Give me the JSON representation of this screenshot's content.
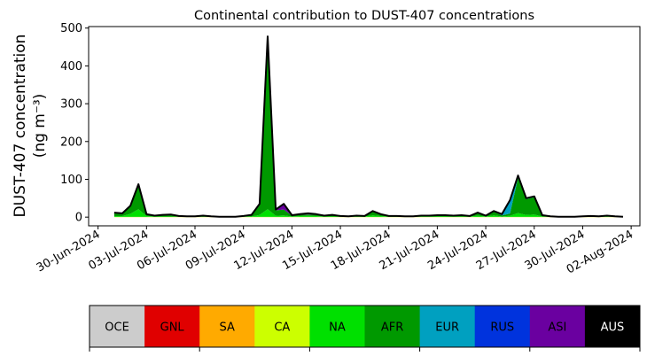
{
  "chart_data": {
    "type": "area",
    "stacked": true,
    "title": "Continental contribution to DUST-407 concentrations",
    "ylabel_line1": "DUST-407 concentration",
    "ylabel_line2": "(ng m⁻³)",
    "xlabel": "",
    "ylim": [
      -23,
      504
    ],
    "xlim": [
      "2024-06-29 10:00",
      "2024-08-02 13:00"
    ],
    "yticks": [
      0,
      100,
      200,
      300,
      400,
      500
    ],
    "xticks": [
      "30-Jun-2024",
      "03-Jul-2024",
      "06-Jul-2024",
      "09-Jul-2024",
      "12-Jul-2024",
      "15-Jul-2024",
      "18-Jul-2024",
      "21-Jul-2024",
      "24-Jul-2024",
      "27-Jul-2024",
      "30-Jul-2024",
      "02-Aug-2024"
    ],
    "grid": false,
    "legend": "colorbar-bottom",
    "total_line_color": "#000000",
    "x": [
      "2024-07-01 00:00",
      "2024-07-01 12:00",
      "2024-07-02 00:00",
      "2024-07-02 12:00",
      "2024-07-03 00:00",
      "2024-07-03 12:00",
      "2024-07-04 00:00",
      "2024-07-04 12:00",
      "2024-07-05 00:00",
      "2024-07-05 12:00",
      "2024-07-06 00:00",
      "2024-07-06 12:00",
      "2024-07-07 00:00",
      "2024-07-07 12:00",
      "2024-07-08 00:00",
      "2024-07-08 12:00",
      "2024-07-09 00:00",
      "2024-07-09 12:00",
      "2024-07-10 00:00",
      "2024-07-10 12:00",
      "2024-07-11 00:00",
      "2024-07-11 12:00",
      "2024-07-12 00:00",
      "2024-07-12 12:00",
      "2024-07-13 00:00",
      "2024-07-13 12:00",
      "2024-07-14 00:00",
      "2024-07-14 12:00",
      "2024-07-15 00:00",
      "2024-07-15 12:00",
      "2024-07-16 00:00",
      "2024-07-16 12:00",
      "2024-07-17 00:00",
      "2024-07-17 12:00",
      "2024-07-18 00:00",
      "2024-07-18 12:00",
      "2024-07-19 00:00",
      "2024-07-19 12:00",
      "2024-07-20 00:00",
      "2024-07-20 12:00",
      "2024-07-21 00:00",
      "2024-07-21 12:00",
      "2024-07-22 00:00",
      "2024-07-22 12:00",
      "2024-07-23 00:00",
      "2024-07-23 12:00",
      "2024-07-24 00:00",
      "2024-07-24 12:00",
      "2024-07-25 00:00",
      "2024-07-25 12:00",
      "2024-07-26 00:00",
      "2024-07-26 12:00",
      "2024-07-27 00:00",
      "2024-07-27 12:00",
      "2024-07-28 00:00",
      "2024-07-28 12:00",
      "2024-07-29 00:00",
      "2024-07-29 12:00",
      "2024-07-30 00:00",
      "2024-07-30 12:00",
      "2024-07-31 00:00",
      "2024-07-31 12:00",
      "2024-08-01 00:00",
      "2024-08-01 12:00"
    ],
    "series": [
      {
        "name": "OCE",
        "color": "#cccccc",
        "values": [
          0,
          0,
          0,
          0,
          0,
          0,
          0,
          0,
          0,
          0,
          0,
          0,
          0,
          0,
          0,
          0,
          0,
          0,
          0,
          0,
          0,
          0,
          0,
          0,
          0,
          0,
          0,
          0,
          0,
          0,
          0,
          0,
          0,
          0,
          0,
          0,
          0,
          0,
          0,
          0,
          0,
          0,
          0,
          0,
          0,
          0,
          0,
          0,
          0,
          0,
          0,
          0,
          0,
          0,
          0,
          0,
          0,
          0,
          0,
          0,
          0,
          0,
          0,
          0
        ]
      },
      {
        "name": "GNL",
        "color": "#e00000",
        "values": [
          0,
          0,
          0,
          0,
          0,
          0,
          0,
          0,
          0,
          0,
          0,
          0,
          0,
          0,
          0,
          0,
          0,
          0,
          0,
          0,
          0,
          0,
          0,
          0,
          0,
          0,
          0,
          0,
          0,
          0,
          0,
          0,
          0,
          0,
          0,
          0,
          0,
          0,
          0,
          0,
          0,
          0,
          0,
          0,
          0,
          0,
          0,
          0,
          0,
          0,
          0,
          0,
          0,
          0,
          0,
          0,
          0,
          0,
          0,
          0,
          0,
          0,
          0,
          0
        ]
      },
      {
        "name": "SA",
        "color": "#ffaa00",
        "values": [
          0.2,
          0.2,
          0.2,
          0.2,
          0.2,
          0.2,
          0.2,
          0.2,
          0.2,
          0.2,
          0.2,
          0.2,
          0.2,
          0.2,
          0.2,
          0.2,
          0.2,
          0.2,
          0.2,
          0.2,
          0.2,
          0.2,
          0.2,
          0.2,
          0.2,
          0.2,
          0.2,
          0.2,
          0.2,
          0.2,
          0.2,
          0.2,
          0.2,
          0.2,
          0.2,
          0.2,
          0.2,
          0.2,
          0.2,
          0.2,
          0.2,
          0.2,
          0.2,
          0.2,
          0.2,
          0.2,
          0.2,
          0.2,
          0.2,
          0.2,
          0.2,
          0.2,
          0.2,
          0.2,
          0.2,
          0.2,
          0.2,
          0.2,
          0.2,
          0.2,
          0.2,
          0.2,
          0.2,
          0.2
        ]
      },
      {
        "name": "CA",
        "color": "#ccff00",
        "values": [
          0.5,
          0.5,
          0.5,
          0.5,
          0.5,
          0.5,
          0.5,
          0.5,
          0.5,
          0.5,
          0.5,
          0.5,
          0.5,
          0.5,
          0.5,
          0.5,
          0.5,
          0.5,
          0.5,
          0.5,
          0.5,
          0.5,
          0.5,
          0.5,
          0.5,
          0.5,
          0.5,
          0.5,
          0.5,
          0.5,
          0.5,
          0.5,
          0.5,
          0.5,
          0.5,
          0.5,
          0.5,
          0.5,
          0.5,
          0.5,
          0.5,
          0.5,
          0.5,
          0.5,
          0.5,
          0.5,
          0.5,
          0.5,
          0.5,
          0.5,
          0.5,
          0.5,
          0.5,
          0.5,
          0.5,
          0.5,
          0.5,
          0.5,
          0.5,
          0.5,
          0.5,
          0.5,
          0.5,
          0.5
        ]
      },
      {
        "name": "NA",
        "color": "#00e000",
        "values": [
          2,
          2,
          8,
          20,
          2,
          1,
          1,
          1,
          0.5,
          0.5,
          0.5,
          1,
          0.5,
          0.1,
          0.1,
          0.1,
          0.5,
          1,
          5,
          20,
          3,
          4,
          1,
          2,
          3,
          2,
          1,
          1,
          1,
          0.5,
          1,
          1,
          4,
          2,
          1,
          1,
          0.5,
          0.5,
          1,
          1,
          1,
          1,
          1,
          1,
          1,
          3,
          1,
          4,
          1,
          3,
          10,
          5,
          6,
          1,
          0.5,
          0.1,
          0.1,
          0.1,
          0.5,
          0.5,
          0.5,
          1,
          0.5,
          0.1
        ]
      },
      {
        "name": "AFR",
        "color": "#009900",
        "values": [
          8.3,
          6.3,
          20.8,
          65.8,
          4.8,
          1.8,
          2.3,
          3.3,
          1.3,
          0.3,
          0.3,
          1.8,
          0.3,
          0,
          0,
          0,
          1.3,
          3.3,
          28.3,
          449.3,
          14.3,
          15.3,
          2.3,
          3.3,
          3.3,
          3.3,
          1.3,
          3.3,
          0.8,
          0.3,
          1.8,
          0.8,
          10.3,
          4.3,
          0.8,
          0.8,
          0.3,
          0.3,
          1.3,
          1.3,
          1.8,
          1.8,
          1.3,
          1.8,
          0.8,
          7.3,
          1.3,
          10.3,
          2.8,
          5.8,
          93.3,
          41.8,
          45.8,
          1.8,
          0.3,
          0,
          0,
          0,
          0.3,
          0.8,
          0.3,
          1.3,
          0.3,
          0
        ]
      },
      {
        "name": "EUR",
        "color": "#00a0c0",
        "values": [
          0,
          0,
          0,
          0,
          0,
          0,
          0,
          0,
          0,
          0,
          0,
          0,
          0,
          0,
          0,
          0,
          0,
          0,
          0,
          0,
          0,
          0,
          0,
          0,
          0,
          0,
          0,
          0,
          0,
          0,
          0,
          0,
          0,
          0,
          0,
          0,
          0,
          0,
          0,
          0,
          0,
          0,
          0,
          0,
          0,
          0,
          0,
          0,
          3,
          35,
          5,
          2,
          2,
          1,
          0,
          0,
          0,
          0,
          0,
          0,
          0,
          0,
          0,
          0
        ]
      },
      {
        "name": "RUS",
        "color": "#0033dd",
        "values": [
          0,
          0,
          0,
          0,
          0,
          0,
          0,
          0,
          0,
          0,
          0,
          0,
          0,
          0,
          0,
          0,
          0,
          0,
          0,
          5,
          0,
          0,
          0,
          0,
          0,
          0,
          0,
          0,
          0,
          0,
          0,
          0,
          0,
          0,
          0,
          0,
          0,
          0,
          0,
          0,
          0,
          0,
          0,
          0,
          0,
          0,
          0,
          0,
          0,
          0,
          0,
          0,
          0,
          0,
          0,
          0,
          0,
          0,
          0,
          0,
          0,
          0,
          0,
          0
        ]
      },
      {
        "name": "ASI",
        "color": "#6a00a0",
        "values": [
          1,
          1,
          0.5,
          0.5,
          0.5,
          0.5,
          2,
          2,
          0.5,
          0.5,
          0.5,
          0.5,
          0.5,
          0.2,
          0.2,
          0.2,
          0.5,
          1,
          1,
          3,
          2,
          15,
          1,
          2,
          3,
          2,
          1,
          1,
          0.5,
          0.5,
          0.5,
          0.5,
          1,
          1,
          0.5,
          0.5,
          0.5,
          0.5,
          1,
          1,
          1.5,
          1.5,
          1,
          1.5,
          0.5,
          1,
          1,
          1,
          0.5,
          0.5,
          1,
          0.5,
          0.5,
          0.5,
          0.5,
          0.2,
          0.2,
          0.2,
          0.5,
          1,
          0.5,
          1,
          0.5,
          0.2
        ]
      },
      {
        "name": "AUS",
        "color": "#000000",
        "values": [
          0,
          0,
          0,
          0,
          0,
          0,
          0,
          0,
          0,
          0,
          0,
          0,
          0,
          0,
          0,
          0,
          0,
          0,
          0,
          0,
          0,
          0,
          0,
          0,
          0,
          0,
          0,
          0,
          0,
          0,
          0,
          0,
          0,
          0,
          0,
          0,
          0,
          0,
          0,
          0,
          0,
          0,
          0,
          0,
          0,
          0,
          0,
          0,
          0,
          0,
          0,
          0,
          0,
          0,
          0,
          0,
          0,
          0,
          0,
          0,
          0,
          0,
          0,
          0
        ]
      }
    ]
  },
  "colorbar": {
    "labels": [
      "OCE",
      "GNL",
      "SA",
      "CA",
      "NA",
      "AFR",
      "EUR",
      "RUS",
      "ASI",
      "AUS"
    ],
    "colors": [
      "#cccccc",
      "#e00000",
      "#ffaa00",
      "#ccff00",
      "#00e000",
      "#009900",
      "#00a0c0",
      "#0033dd",
      "#6a00a0",
      "#000000"
    ],
    "text_colors": [
      "#000000",
      "#000000",
      "#000000",
      "#000000",
      "#000000",
      "#000000",
      "#000000",
      "#000000",
      "#000000",
      "#ffffff"
    ]
  }
}
